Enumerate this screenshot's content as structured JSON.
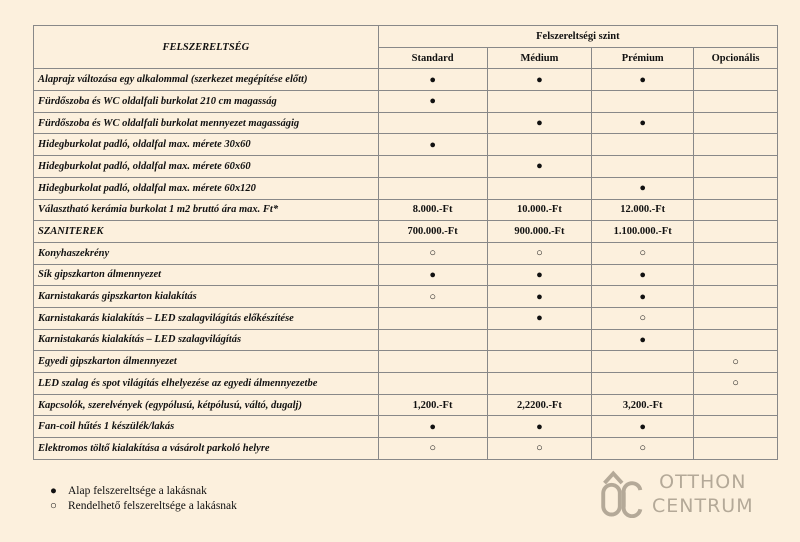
{
  "header": {
    "feature_col": "FELSZERELTSÉG",
    "group": "Felszereltségi szint",
    "levels": [
      "Standard",
      "Médium",
      "Prémium",
      "Opcionális"
    ]
  },
  "symbols": {
    "filled": "●",
    "open": "○"
  },
  "rows": [
    {
      "label": "Alaprajz változása egy alkalommal (szerkezet megépítése előtt)",
      "values": [
        "●",
        "●",
        "●",
        ""
      ]
    },
    {
      "label": "Fürdőszoba és WC oldalfali burkolat 210 cm magasság",
      "values": [
        "●",
        "",
        "",
        ""
      ]
    },
    {
      "label": "Fürdőszoba és WC oldalfali burkolat mennyezet magasságig",
      "values": [
        "",
        "●",
        "●",
        ""
      ]
    },
    {
      "label": "Hidegburkolat  padló, oldalfal max. mérete 30x60",
      "values": [
        "●",
        "",
        "",
        ""
      ]
    },
    {
      "label": "Hidegburkolat  padló, oldalfal  max. mérete 60x60",
      "values": [
        "",
        "●",
        "",
        ""
      ]
    },
    {
      "label": "Hidegburkolat  padló, oldalfal max. mérete 60x120",
      "values": [
        "",
        "",
        "●",
        ""
      ]
    },
    {
      "label": "Választható kerámia burkolat 1 m2 bruttó ára max. Ft*",
      "values": [
        "8.000.-Ft",
        "10.000.-Ft",
        "12.000.-Ft",
        ""
      ]
    },
    {
      "label": "SZANITEREK",
      "values": [
        "700.000.-Ft",
        "900.000.-Ft",
        "1.100.000.-Ft",
        ""
      ]
    },
    {
      "label": "Konyhaszekrény",
      "values": [
        "○",
        "○",
        "○",
        ""
      ]
    },
    {
      "label": "Sík gipszkarton álmennyezet",
      "values": [
        "●",
        "●",
        "●",
        ""
      ]
    },
    {
      "label": "Karnistakarás gipszkarton kialakítás",
      "values": [
        "○",
        "●",
        "●",
        ""
      ]
    },
    {
      "label": "Karnistakarás kialakítás – LED szalagvilágítás előkészítése",
      "values": [
        "",
        "●",
        "○",
        ""
      ]
    },
    {
      "label": "Karnistakarás kialakítás – LED szalagvilágítás",
      "values": [
        "",
        "",
        "●",
        ""
      ]
    },
    {
      "label": "Egyedi gipszkarton álmennyezet",
      "values": [
        "",
        "",
        "",
        "○"
      ]
    },
    {
      "label": "LED szalag és spot világítás elhelyezése az egyedi álmennyezetbe",
      "values": [
        "",
        "",
        "",
        "○"
      ]
    },
    {
      "label": "Kapcsolók, szerelvények (egypólusú, kétpólusú, váltó, dugalj)",
      "values": [
        "1,200.-Ft",
        "2,2200.-Ft",
        "3,200.-Ft",
        ""
      ]
    },
    {
      "label": "Fan-coil hűtés 1 készülék/lakás",
      "values": [
        "●",
        "●",
        "●",
        ""
      ]
    },
    {
      "label": "Elektromos töltő kialakítása a vásárolt parkoló helyre",
      "values": [
        "○",
        "○",
        "○",
        ""
      ]
    }
  ],
  "legend": [
    {
      "symbol": "●",
      "text": "Alap felszereltsége a lakásnak"
    },
    {
      "symbol": "○",
      "text": "Rendelhető felszereltsége a lakásnak"
    }
  ],
  "watermark": {
    "logo": "OC",
    "line1": "OTTHON",
    "line2": "CENTRUM",
    "color": "#7a7060"
  }
}
